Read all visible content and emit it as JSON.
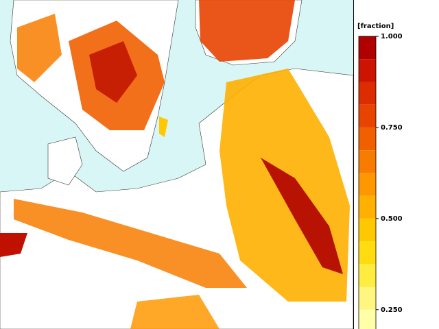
{
  "colorbar": {
    "label": "[fraction]",
    "lim": [
      0.1875,
      1.0
    ],
    "ticks": [
      {
        "value": 1.0,
        "label": "1.000"
      },
      {
        "value": 0.75,
        "label": "0.750"
      },
      {
        "value": 0.5,
        "label": "0.500"
      },
      {
        "value": 0.25,
        "label": "0.250"
      }
    ],
    "levels": [
      {
        "from": 0.9375,
        "to": 1.0,
        "color": "#b00000"
      },
      {
        "from": 0.875,
        "to": 0.9375,
        "color": "#cc1400"
      },
      {
        "from": 0.8125,
        "to": 0.875,
        "color": "#dc2c00"
      },
      {
        "from": 0.75,
        "to": 0.8125,
        "color": "#e84400"
      },
      {
        "from": 0.6875,
        "to": 0.75,
        "color": "#f06000"
      },
      {
        "from": 0.625,
        "to": 0.6875,
        "color": "#f87c00"
      },
      {
        "from": 0.5625,
        "to": 0.625,
        "color": "#ff9800"
      },
      {
        "from": 0.5,
        "to": 0.5625,
        "color": "#ffb000"
      },
      {
        "from": 0.4375,
        "to": 0.5,
        "color": "#ffc800"
      },
      {
        "from": 0.375,
        "to": 0.4375,
        "color": "#ffdc10"
      },
      {
        "from": 0.3125,
        "to": 0.375,
        "color": "#ffec40"
      },
      {
        "from": 0.25,
        "to": 0.3125,
        "color": "#fff680"
      },
      {
        "from": 0.1875,
        "to": 0.25,
        "color": "#ffffa8"
      }
    ]
  }
}
